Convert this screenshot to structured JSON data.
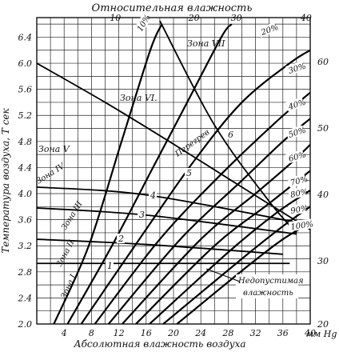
{
  "chart_data": {
    "type": "line",
    "title_top": "Относительная влажность",
    "xlabel": "Абсолютная влажность воздуха",
    "xunit": "мм Hg",
    "ylabel": "Температура воздуха, T сек",
    "x_ticks": [
      4,
      8,
      12,
      16,
      20,
      24,
      28,
      32,
      36,
      40
    ],
    "xlim": [
      0,
      40
    ],
    "y_ticks": [
      "2.0",
      "2.4",
      "2.8",
      "3.2",
      "3.6",
      "4.0",
      "4.4",
      "4.8",
      "5.2",
      "5.6",
      "6.0",
      "6.4"
    ],
    "ylim": [
      2.0,
      6.7
    ],
    "top_ticks": [
      "10",
      "20",
      "30",
      "40"
    ],
    "right_ticks": [
      "20",
      "30",
      "40",
      "50",
      "60"
    ],
    "rh_series": [
      {
        "name": "10%",
        "points": [
          [
            2.5,
            2.0
          ],
          [
            7.6,
            3.2
          ],
          [
            12.4,
            4.8
          ],
          [
            16.6,
            6.2
          ],
          [
            18.3,
            6.6
          ]
        ]
      },
      {
        "name": "20%",
        "points": [
          [
            4.5,
            2.0
          ],
          [
            11,
            3.2
          ],
          [
            17,
            4.4
          ],
          [
            22,
            5.4
          ],
          [
            27,
            6.4
          ],
          [
            28.5,
            6.6
          ]
        ]
      },
      {
        "name": "30%",
        "points": [
          [
            6.5,
            2.0
          ],
          [
            15,
            3.3
          ],
          [
            23,
            4.5
          ],
          [
            30,
            5.4
          ],
          [
            37,
            6.0
          ],
          [
            40,
            6.2
          ]
        ]
      },
      {
        "name": "40%",
        "points": [
          [
            8.5,
            2.0
          ],
          [
            18,
            3.3
          ],
          [
            27,
            4.3
          ],
          [
            35,
            5.1
          ],
          [
            40,
            5.55
          ]
        ]
      },
      {
        "name": "50%",
        "points": [
          [
            10.5,
            2.0
          ],
          [
            21,
            3.3
          ],
          [
            30,
            4.2
          ],
          [
            36,
            4.8
          ],
          [
            40,
            5.15
          ]
        ]
      },
      {
        "name": "60%",
        "points": [
          [
            12.5,
            2.0
          ],
          [
            24,
            3.3
          ],
          [
            32,
            4.0
          ],
          [
            37,
            4.45
          ],
          [
            40,
            4.75
          ]
        ]
      },
      {
        "name": "70%",
        "points": [
          [
            14.5,
            2.0
          ],
          [
            26,
            3.2
          ],
          [
            34,
            3.85
          ],
          [
            40,
            4.35
          ]
        ]
      },
      {
        "name": "80%",
        "points": [
          [
            16.5,
            2.0
          ],
          [
            28,
            3.1
          ],
          [
            35,
            3.7
          ],
          [
            40,
            4.05
          ]
        ]
      },
      {
        "name": "90%",
        "points": [
          [
            18.5,
            2.0
          ],
          [
            30,
            3.0
          ],
          [
            36,
            3.5
          ],
          [
            40,
            3.8
          ]
        ]
      },
      {
        "name": "100%",
        "points": [
          [
            20.5,
            2.0
          ],
          [
            31,
            2.9
          ],
          [
            36,
            3.3
          ],
          [
            40,
            3.55
          ]
        ]
      }
    ],
    "boundary_lines": [
      {
        "name": "1",
        "points": [
          [
            0,
            2.93
          ],
          [
            37,
            2.93
          ]
        ]
      },
      {
        "name": "2",
        "points": [
          [
            0,
            3.3
          ],
          [
            16,
            3.22
          ],
          [
            36,
            3.07
          ]
        ]
      },
      {
        "name": "3",
        "points": [
          [
            0,
            3.78
          ],
          [
            16,
            3.67
          ],
          [
            38,
            3.38
          ]
        ]
      },
      {
        "name": "4",
        "points": [
          [
            0,
            4.1
          ],
          [
            16,
            3.98
          ],
          [
            38.5,
            3.55
          ]
        ]
      },
      {
        "name": "5",
        "points": [
          [
            0,
            6.0
          ],
          [
            10,
            5.4
          ],
          [
            20,
            4.76
          ],
          [
            30,
            4.1
          ],
          [
            40,
            3.45
          ]
        ]
      },
      {
        "name": "6",
        "points": [
          [
            18,
            6.65
          ],
          [
            26,
            5.05
          ],
          [
            34,
            3.88
          ],
          [
            38,
            3.4
          ]
        ]
      }
    ],
    "zones": [
      "Зона I",
      "Зона II",
      "Зона III",
      "Зона IV",
      "Зона V",
      "Зона VI.",
      "Зона VII"
    ],
    "annotations": {
      "peregrev": "Перегрев",
      "nedopust": "Недопустимая",
      "vlazhnost": "влажность"
    }
  }
}
